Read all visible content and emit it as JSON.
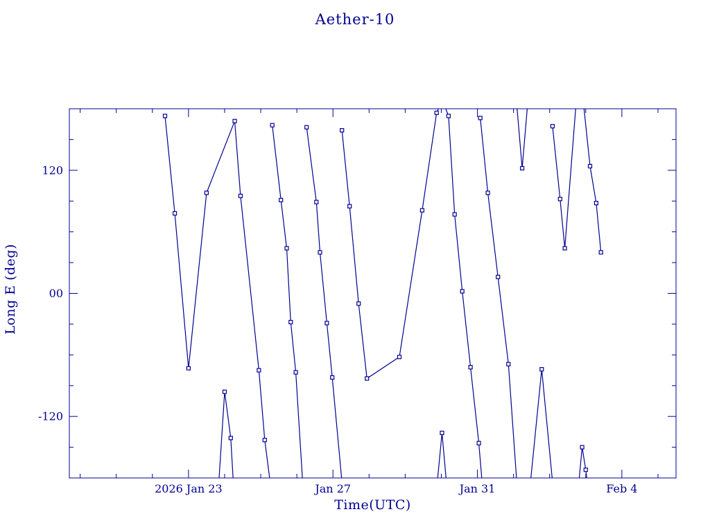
{
  "colors": {
    "ink": "#000090",
    "background": "#ffffff",
    "marker_fill": "#ffffff"
  },
  "chart_data": {
    "type": "line",
    "title": "Aether-10",
    "xlabel": "Time(UTC)",
    "ylabel": "Long E (deg)",
    "x_axis_unit": "day of 2026 (Jan 1 = 1, Feb 4 = 35)",
    "xlim": [
      19.7,
      36.5
    ],
    "ylim": [
      -180,
      180
    ],
    "x_ticks": [
      {
        "v": 23,
        "label": "2026 Jan 23"
      },
      {
        "v": 27,
        "label": "Jan 27"
      },
      {
        "v": 31,
        "label": "Jan 31"
      },
      {
        "v": 35,
        "label": "Feb 4"
      }
    ],
    "x_minor_every": 1,
    "y_ticks": [
      {
        "v": -120,
        "label": "-120"
      },
      {
        "v": 0,
        "label": "00"
      },
      {
        "v": 120,
        "label": "120"
      }
    ],
    "y_minor_every": 30,
    "grid": false,
    "legend": "none",
    "marker": "open-square",
    "segments": [
      {
        "line": [
          [
            22.35,
            173
          ],
          [
            22.62,
            78
          ],
          [
            23.0,
            -73
          ],
          [
            23.5,
            98
          ],
          [
            24.28,
            168
          ],
          [
            24.44,
            95
          ],
          [
            24.95,
            -75
          ],
          [
            25.11,
            -143
          ],
          [
            25.26,
            -184
          ]
        ],
        "markers": [
          [
            22.35,
            173
          ],
          [
            22.62,
            78
          ],
          [
            23.0,
            -73
          ],
          [
            23.5,
            98
          ],
          [
            24.28,
            168
          ],
          [
            24.44,
            95
          ],
          [
            24.95,
            -75
          ],
          [
            25.11,
            -143
          ]
        ]
      },
      {
        "line": [
          [
            23.84,
            -184
          ],
          [
            24.0,
            -96
          ],
          [
            24.17,
            -141
          ],
          [
            24.24,
            -184
          ]
        ],
        "markers": [
          [
            24.0,
            -96
          ],
          [
            24.17,
            -141
          ]
        ]
      },
      {
        "line": [
          [
            25.32,
            164
          ],
          [
            25.56,
            91
          ],
          [
            25.72,
            44
          ],
          [
            25.83,
            -28
          ],
          [
            25.97,
            -77
          ],
          [
            26.16,
            -184
          ]
        ],
        "markers": [
          [
            25.32,
            164
          ],
          [
            25.56,
            91
          ],
          [
            25.72,
            44
          ],
          [
            25.83,
            -28
          ],
          [
            25.97,
            -77
          ]
        ]
      },
      {
        "line": [
          [
            26.27,
            162
          ],
          [
            26.54,
            89
          ],
          [
            26.64,
            40
          ],
          [
            26.83,
            -29
          ],
          [
            26.98,
            -82
          ],
          [
            27.25,
            -184
          ]
        ],
        "markers": [
          [
            26.27,
            162
          ],
          [
            26.54,
            89
          ],
          [
            26.64,
            40
          ],
          [
            26.83,
            -29
          ],
          [
            26.98,
            -82
          ]
        ]
      },
      {
        "line": [
          [
            27.25,
            159
          ],
          [
            27.46,
            85
          ],
          [
            27.71,
            -10
          ],
          [
            27.94,
            -83
          ],
          [
            28.84,
            -62
          ],
          [
            29.47,
            81
          ],
          [
            29.87,
            176
          ],
          [
            29.97,
            184
          ]
        ],
        "markers": [
          [
            27.25,
            159
          ],
          [
            27.46,
            85
          ],
          [
            27.71,
            -10
          ],
          [
            27.94,
            -83
          ],
          [
            28.84,
            -62
          ],
          [
            29.47,
            81
          ],
          [
            29.87,
            176
          ]
        ]
      },
      {
        "line": [
          [
            30.08,
            184
          ],
          [
            30.2,
            173
          ],
          [
            30.37,
            77
          ],
          [
            30.58,
            2
          ],
          [
            30.81,
            -72
          ],
          [
            31.04,
            -146
          ],
          [
            31.13,
            -184
          ]
        ],
        "markers": [
          [
            30.2,
            173
          ],
          [
            30.37,
            77
          ],
          [
            30.58,
            2
          ],
          [
            30.81,
            -72
          ],
          [
            31.04,
            -146
          ]
        ]
      },
      {
        "line": [
          [
            29.89,
            -184
          ],
          [
            30.02,
            -136
          ],
          [
            30.14,
            -184
          ]
        ],
        "markers": [
          [
            30.02,
            -136
          ]
        ]
      },
      {
        "line": [
          [
            31.08,
            171
          ],
          [
            31.29,
            98
          ],
          [
            31.57,
            16
          ],
          [
            31.86,
            -69
          ],
          [
            32.09,
            -184
          ]
        ],
        "markers": [
          [
            31.08,
            171
          ],
          [
            31.29,
            98
          ],
          [
            31.57,
            16
          ],
          [
            31.86,
            -69
          ]
        ]
      },
      {
        "line": [
          [
            32.09,
            184
          ],
          [
            32.24,
            122
          ],
          [
            32.39,
            184
          ]
        ],
        "markers": [
          [
            32.24,
            122
          ]
        ]
      },
      {
        "line": [
          [
            32.47,
            -184
          ],
          [
            32.78,
            -74
          ],
          [
            33.08,
            -184
          ]
        ],
        "markers": [
          [
            32.78,
            -74
          ]
        ]
      },
      {
        "line": [
          [
            33.08,
            163
          ],
          [
            33.29,
            92
          ],
          [
            33.42,
            44
          ],
          [
            33.73,
            184
          ]
        ],
        "markers": [
          [
            33.08,
            163
          ],
          [
            33.29,
            92
          ],
          [
            33.42,
            44
          ]
        ]
      },
      {
        "line": [
          [
            33.94,
            184
          ],
          [
            34.12,
            124
          ],
          [
            34.29,
            88
          ],
          [
            34.42,
            40
          ]
        ],
        "markers": [
          [
            34.12,
            124
          ],
          [
            34.29,
            88
          ],
          [
            34.42,
            40
          ]
        ]
      },
      {
        "line": [
          [
            33.81,
            -184
          ],
          [
            33.9,
            -150
          ],
          [
            34.0,
            -172
          ],
          [
            34.04,
            -184
          ]
        ],
        "markers": [
          [
            33.9,
            -150
          ],
          [
            34.0,
            -172
          ]
        ]
      }
    ]
  }
}
